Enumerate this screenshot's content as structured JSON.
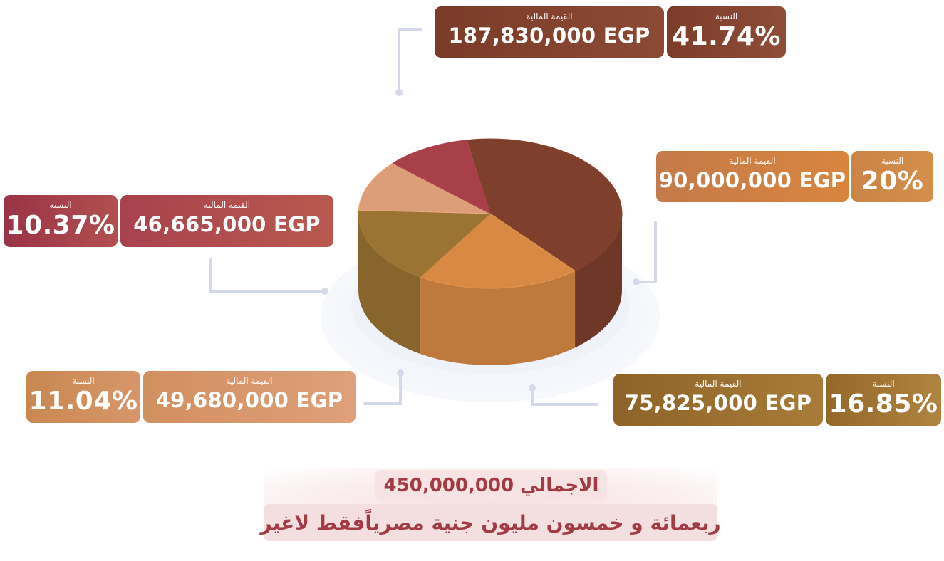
{
  "chart_data": {
    "type": "pie",
    "style": "3d-cylinder",
    "currency": "EGP",
    "value_label": "القيمة المالية",
    "percent_label": "النسبة",
    "slices": [
      {
        "value": 187830000,
        "value_text": "187,830,000 EGP",
        "percent": 41.74,
        "percent_text": "41.74%",
        "color": "#7e3f2c"
      },
      {
        "value": 90000000,
        "value_text": "90,000,000 EGP",
        "percent": 20,
        "percent_text": "20%",
        "color": "#d88a45"
      },
      {
        "value": 75825000,
        "value_text": "75,825,000 EGP",
        "percent": 16.85,
        "percent_text": "16.85%",
        "color": "#9b7333"
      },
      {
        "value": 49680000,
        "value_text": "49,680,000 EGP",
        "percent": 11.04,
        "percent_text": "11.04%",
        "color": "#dc9e78"
      },
      {
        "value": 46665000,
        "value_text": "46,665,000 EGP",
        "percent": 10.37,
        "percent_text": "10.37%",
        "color": "#a8404a"
      }
    ],
    "total": 450000000
  },
  "total": {
    "line1": "الاجمالي 450,000,000",
    "line2": "ربعمائة و خمسون مليون جنية مصرياًفقط لاغير",
    "color": "#a23c44"
  }
}
